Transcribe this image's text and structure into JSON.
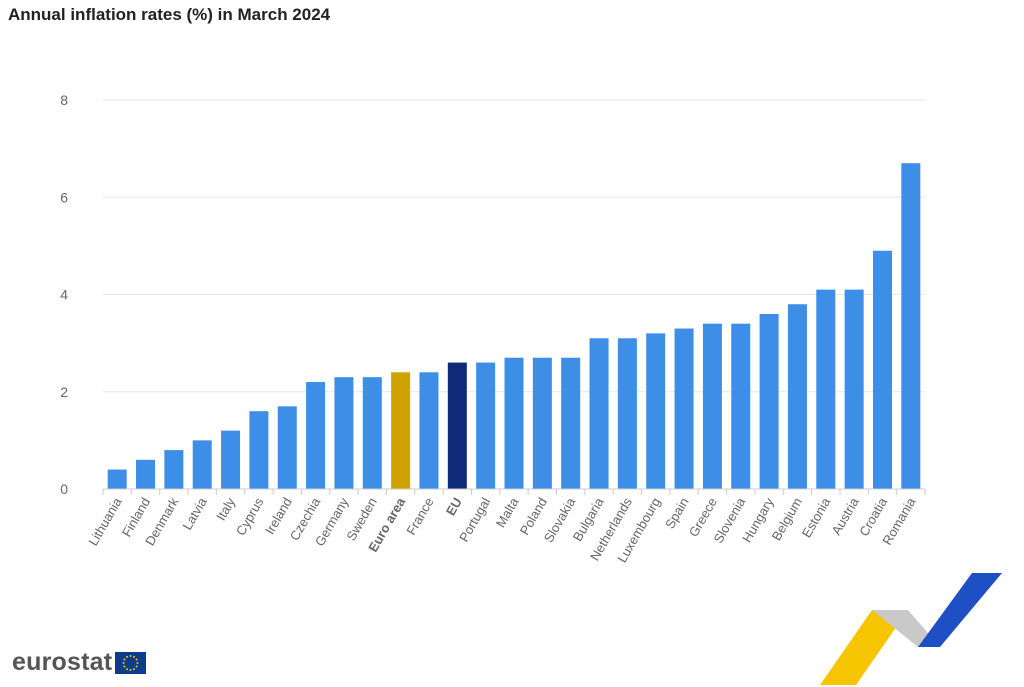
{
  "page": {
    "title": "Annual inflation rates (%) in March 2024"
  },
  "brand": {
    "logo_text": "eurostat",
    "flag_icon": "eu-flag-icon",
    "decor_icon": "eurostat-chevron-graphic"
  },
  "colors": {
    "bar": "#3c8ee6",
    "euro_area": "#cfa200",
    "eu": "#0e2a78",
    "grid": "#e6e6e6",
    "axis": "#cccccc"
  },
  "chart_data": {
    "type": "bar",
    "title": "Annual inflation rates (%) in March 2024",
    "xlabel": "",
    "ylabel": "",
    "ylim": [
      0,
      8
    ],
    "yticks": [
      0,
      2,
      4,
      6,
      8
    ],
    "grid": true,
    "legend": "none",
    "categories": [
      "Lithuania",
      "Finland",
      "Denmark",
      "Latvia",
      "Italy",
      "Cyprus",
      "Ireland",
      "Czechia",
      "Germany",
      "Sweden",
      "Euro area",
      "France",
      "EU",
      "Portugal",
      "Malta",
      "Poland",
      "Slovakia",
      "Bulgaria",
      "Netherlands",
      "Luxembourg",
      "Spain",
      "Greece",
      "Slovenia",
      "Hungary",
      "Belgium",
      "Estonia",
      "Austria",
      "Croatia",
      "Romania"
    ],
    "values": [
      0.4,
      0.6,
      0.8,
      1.0,
      1.2,
      1.6,
      1.7,
      2.2,
      2.3,
      2.3,
      2.4,
      2.4,
      2.6,
      2.6,
      2.7,
      2.7,
      2.7,
      3.1,
      3.1,
      3.2,
      3.3,
      3.4,
      3.4,
      3.6,
      3.8,
      4.1,
      4.1,
      4.9,
      6.7
    ],
    "highlighted": {
      "Euro area": "euro_area",
      "EU": "eu"
    },
    "bold_categories": [
      "Euro area",
      "EU"
    ]
  }
}
